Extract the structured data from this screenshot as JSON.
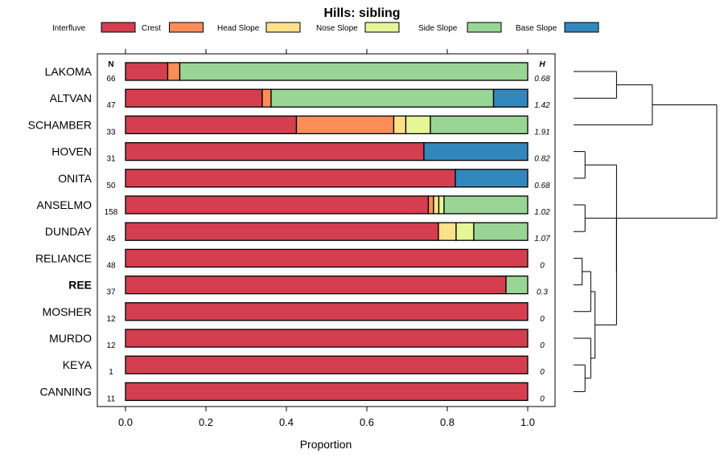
{
  "chart_data": {
    "type": "bar",
    "orientation": "horizontal",
    "stacked": true,
    "title": "Hills: sibling",
    "xlabel": "Proportion",
    "xlim": [
      0,
      1
    ],
    "x_ticks": [
      0.0,
      0.2,
      0.4,
      0.6,
      0.8,
      1.0
    ],
    "x_tick_labels": [
      "0.0",
      "0.2",
      "0.4",
      "0.6",
      "0.8",
      "1.0"
    ],
    "n_header": "N",
    "h_header": "H",
    "legend_position": "top",
    "highlighted_category": "REE",
    "legend": [
      {
        "name": "Interfluve",
        "color": "#d53e4f"
      },
      {
        "name": "Crest",
        "color": "#fc8d59"
      },
      {
        "name": "Head Slope",
        "color": "#fee08b"
      },
      {
        "name": "Nose Slope",
        "color": "#e6f598"
      },
      {
        "name": "Side Slope",
        "color": "#99d594"
      },
      {
        "name": "Base Slope",
        "color": "#3288bd"
      }
    ],
    "categories": [
      "LAKOMA",
      "ALTVAN",
      "SCHAMBER",
      "HOVEN",
      "ONITA",
      "ANSELMO",
      "DUNDAY",
      "RELIANCE",
      "REE",
      "MOSHER",
      "MURDO",
      "KEYA",
      "CANNING"
    ],
    "n": [
      "66",
      "47",
      "33",
      "31",
      "50",
      "158",
      "45",
      "48",
      "37",
      "12",
      "12",
      "1",
      "11"
    ],
    "h": [
      "0.68",
      "1.42",
      "1.91",
      "0.82",
      "0.68",
      "1.02",
      "1.07",
      "0",
      "0.3",
      "0",
      "0",
      "0",
      "0"
    ],
    "series": [
      {
        "name": "Interfluve",
        "values": [
          0.105,
          0.34,
          0.425,
          0.742,
          0.82,
          0.753,
          0.778,
          1.0,
          0.946,
          1.0,
          1.0,
          1.0,
          1.0
        ]
      },
      {
        "name": "Crest",
        "values": [
          0.03,
          0.022,
          0.242,
          0,
          0,
          0.013,
          0,
          0,
          0,
          0,
          0,
          0,
          0
        ]
      },
      {
        "name": "Head Slope",
        "values": [
          0,
          0,
          0.03,
          0,
          0,
          0.013,
          0.044,
          0,
          0,
          0,
          0,
          0,
          0
        ]
      },
      {
        "name": "Nose Slope",
        "values": [
          0,
          0,
          0.061,
          0,
          0,
          0.013,
          0.044,
          0,
          0,
          0,
          0,
          0,
          0
        ]
      },
      {
        "name": "Side Slope",
        "values": [
          0.865,
          0.553,
          0.242,
          0,
          0,
          0.208,
          0.134,
          0,
          0.054,
          0,
          0,
          0,
          0
        ]
      },
      {
        "name": "Base Slope",
        "values": [
          0,
          0.085,
          0,
          0.258,
          0.18,
          0,
          0,
          0,
          0,
          0,
          0,
          0,
          0
        ]
      }
    ],
    "dendrogram": {
      "leaves": [
        "LAKOMA",
        "ALTVAN",
        "SCHAMBER",
        "HOVEN",
        "ONITA",
        "ANSELMO",
        "DUNDAY",
        "RELIANCE",
        "REE",
        "MOSHER",
        "MURDO",
        "KEYA",
        "CANNING"
      ],
      "merges": [
        {
          "a": "L0",
          "b": "L1",
          "height": 0.3
        },
        {
          "a": "L11",
          "b": "L12",
          "height": 0.08
        },
        {
          "a": "L7",
          "b": "L8",
          "height": 0.06
        },
        {
          "a": "L3",
          "b": "L4",
          "height": 0.08
        },
        {
          "a": "L10",
          "b": "C1",
          "height": 0.12
        },
        {
          "a": "L9",
          "b": "C2",
          "height": 0.12
        },
        {
          "a": "L5",
          "b": "L6",
          "height": 0.08
        },
        {
          "a": "C4",
          "b": "C5",
          "height": 0.15
        },
        {
          "a": "C0",
          "b": "L2",
          "height": 0.55
        },
        {
          "a": "C7",
          "b": "C6",
          "height": 0.3
        },
        {
          "a": "C3",
          "b": "C9",
          "height": 0.3
        },
        {
          "a": "C8",
          "b": "C10",
          "height": 1.0
        }
      ]
    }
  }
}
